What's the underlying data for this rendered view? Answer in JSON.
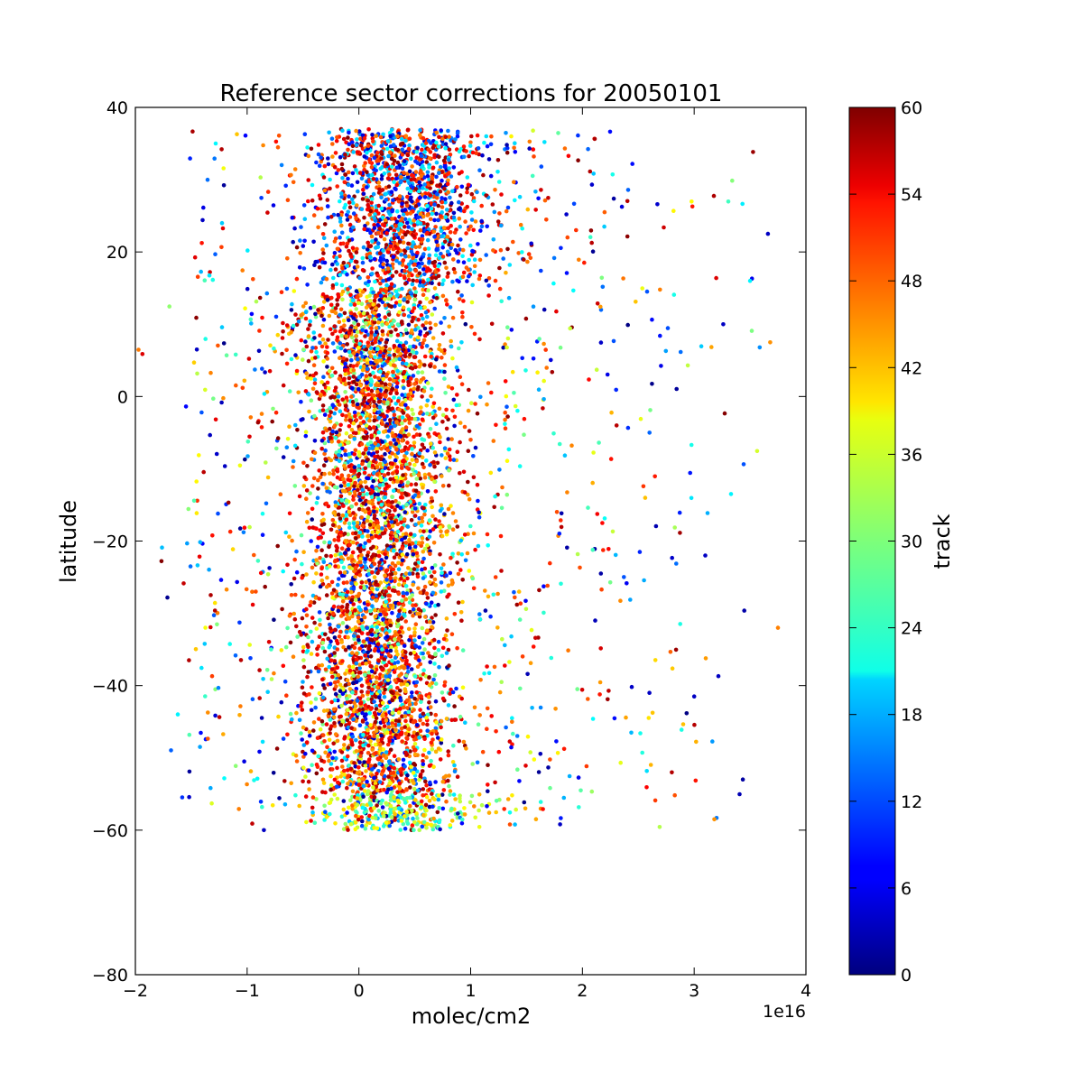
{
  "chart_data": {
    "type": "scatter",
    "title": "Reference sector corrections for 20050101",
    "xlabel": "molec/cm2",
    "ylabel": "latitude",
    "x_offset_label": "1e16",
    "xlim": [
      -2,
      4
    ],
    "ylim": [
      -80,
      40
    ],
    "xticks": [
      -2,
      -1,
      0,
      1,
      2,
      3,
      4
    ],
    "xtick_labels": [
      "−2",
      "−1",
      "0",
      "1",
      "2",
      "3",
      "4"
    ],
    "yticks": [
      -80,
      -60,
      -40,
      -20,
      0,
      20,
      40
    ],
    "ytick_labels": [
      "−80",
      "−60",
      "−40",
      "−20",
      "0",
      "20",
      "40"
    ],
    "colorbar": {
      "label": "track",
      "range": [
        0,
        60
      ],
      "ticks": [
        0,
        6,
        12,
        18,
        24,
        30,
        36,
        42,
        48,
        54,
        60
      ],
      "tick_labels": [
        "0",
        "6",
        "12",
        "18",
        "24",
        "30",
        "36",
        "42",
        "48",
        "54",
        "60"
      ],
      "colormap": "jet"
    },
    "series_summary": {
      "latitude_range": [
        -60,
        37
      ],
      "x_core_range": [
        -0.5,
        1.0
      ],
      "x_outlier_range": [
        -1.5,
        3.8
      ],
      "note": "dense scatter of pixels, x in units of 1e16 molec/cm2, colored by track"
    },
    "points_sample": [
      {
        "x": 3.75,
        "y": -32.0,
        "c": 45
      },
      {
        "x": 3.66,
        "y": 22.5,
        "c": 4
      },
      {
        "x": 3.68,
        "y": 7.5,
        "c": 44
      },
      {
        "x": 3.5,
        "y": 16.0,
        "c": 22
      },
      {
        "x": 3.33,
        "y": -13.5,
        "c": 22
      },
      {
        "x": 3.18,
        "y": -58.5,
        "c": 44
      },
      {
        "x": 3.26,
        "y": 10.0,
        "c": 4
      },
      {
        "x": 3.1,
        "y": -22.0,
        "c": 4
      },
      {
        "x": 3.0,
        "y": -41.5,
        "c": 4
      },
      {
        "x": 2.8,
        "y": -52.0,
        "c": 57
      },
      {
        "x": 2.6,
        "y": -41.0,
        "c": 4
      },
      {
        "x": -1.52,
        "y": -36.5,
        "c": 57
      },
      {
        "x": -1.45,
        "y": 6.5,
        "c": 4
      },
      {
        "x": -0.85,
        "y": -60.0,
        "c": 4
      }
    ]
  }
}
